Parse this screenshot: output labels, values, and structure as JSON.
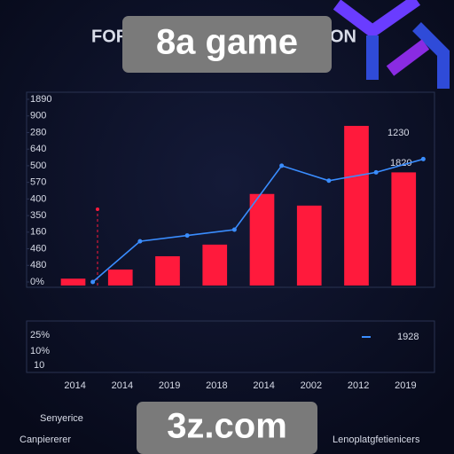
{
  "chart_data": {
    "type": "bar",
    "title": "FOR",
    "title_end": "ON",
    "categories": [
      "2014",
      "2014",
      "2019",
      "2018",
      "2014",
      "2002",
      "2012",
      "2019"
    ],
    "series": [
      {
        "type": "bar",
        "color": "#ff1a3c",
        "values": [
          0.2,
          0.75,
          1.55,
          2.25,
          5.3,
          4.6,
          9.4,
          6.6
        ]
      },
      {
        "type": "line",
        "color": "#3a8dff",
        "values": [
          0,
          2.45,
          2.8,
          3.15,
          7.0,
          6.1,
          6.6,
          7.4
        ]
      }
    ],
    "ylim": [
      0,
      11
    ],
    "yticks": [
      {
        "value": 0,
        "label": "0%"
      },
      {
        "value": 1,
        "label": "480"
      },
      {
        "value": 2,
        "label": "460"
      },
      {
        "value": 3,
        "label": "160"
      },
      {
        "value": 4,
        "label": "350"
      },
      {
        "value": 5,
        "label": "400"
      },
      {
        "value": 6,
        "label": "570"
      },
      {
        "value": 7,
        "label": "500"
      },
      {
        "value": 8,
        "label": "640"
      },
      {
        "value": 9,
        "label": "280"
      },
      {
        "value": 10,
        "label": "900"
      },
      {
        "value": 11,
        "label": "1890"
      }
    ],
    "annotations": [
      "1230",
      "1820"
    ],
    "lower_panel": {
      "labels": [
        "25%",
        "10%",
        "10"
      ],
      "legend": "1928"
    },
    "footer": {
      "heading": "Senyerice",
      "left": "Canpiererer",
      "right": "Lenoplatgfetienicers"
    },
    "watermarks": [
      "8a game",
      "3z.com"
    ]
  }
}
